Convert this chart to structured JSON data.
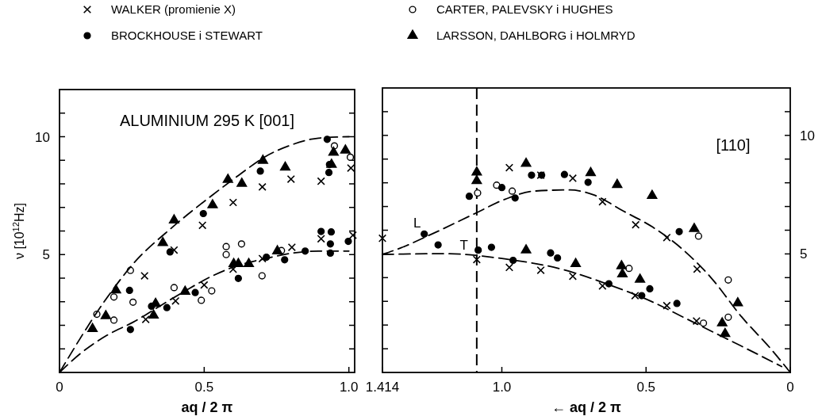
{
  "chart_data": [
    {
      "type": "scatter",
      "xlabel": "aq / 2 π",
      "ylabel": "ν [10$^{12}$Hz]",
      "annotations": [
        "ALUMINIUM 295 K [001]"
      ],
      "legend": "top",
      "xlim": [
        0,
        1.02
      ],
      "ylim": [
        0,
        12
      ],
      "xticks": [
        0,
        0.5,
        {
          "value": 1,
          "label": "1.0"
        }
      ],
      "yticks": [
        {
          "value": 1,
          "label": null
        },
        {
          "value": 2,
          "label": null
        },
        {
          "value": 3,
          "label": null
        },
        {
          "value": 4,
          "label": null
        },
        5,
        {
          "value": 6,
          "label": null
        },
        {
          "value": 7,
          "label": null
        },
        {
          "value": 8,
          "label": null
        },
        {
          "value": 9,
          "label": null
        },
        10,
        {
          "value": 11,
          "label": null
        }
      ],
      "series": [
        {
          "name": "WALKER (promienie X)",
          "marker": "cross",
          "color": "#000000",
          "x": [
            0.494,
            0.6,
            0.701,
            0.8,
            0.904,
            1.007,
            0.294,
            0.298,
            0.396,
            0.401,
            0.5,
            0.6,
            0.701,
            0.803,
            0.904,
            1.014
          ],
          "values": [
            6.24,
            7.21,
            7.87,
            8.2,
            8.11,
            8.67,
            4.1,
            2.25,
            5.19,
            3.03,
            3.71,
            4.38,
            4.83,
            5.31,
            5.67,
            5.82
          ]
        },
        {
          "name": "CARTER, PALEVSKY i HUGHES",
          "marker": "circle",
          "color": "#ffffff",
          "x": [
            0.129,
            0.188,
            0.188,
            0.245,
            0.254,
            0.396,
            0.49,
            0.526,
            0.576,
            0.576,
            0.629,
            0.7,
            0.767,
            0.95,
            1.005
          ],
          "values": [
            2.47,
            3.2,
            2.22,
            4.33,
            2.98,
            3.6,
            3.06,
            3.46,
            5.34,
            5.0,
            5.45,
            4.1,
            5.17,
            9.61,
            9.13
          ]
        },
        {
          "name": "BROCKHOUSE i STEWART",
          "marker": "circle",
          "color": "#000000",
          "x": [
            0.242,
            0.382,
            0.497,
            0.694,
            0.925,
            0.931,
            0.933,
            0.245,
            0.318,
            0.371,
            0.469,
            0.618,
            0.715,
            0.778,
            0.849,
            0.904,
            0.939,
            0.936,
            0.936,
            0.998
          ],
          "values": [
            3.48,
            5.11,
            6.74,
            8.54,
            9.89,
            8.48,
            8.82,
            1.82,
            2.81,
            2.75,
            3.39,
            3.99,
            4.89,
            4.78,
            5.15,
            5.98,
            5.96,
            5.45,
            5.06,
            5.56
          ]
        },
        {
          "name": "LARSSON, DAHLBORG i HOLMRYD",
          "marker": "triangle",
          "color": "#000000",
          "x": [
            0.114,
            0.16,
            0.195,
            0.357,
            0.396,
            0.529,
            0.582,
            0.63,
            0.703,
            0.78,
            0.947,
            0.988,
            0.94,
            0.332,
            0.325,
            0.434,
            0.602,
            0.618,
            0.654,
            0.753
          ],
          "values": [
            1.85,
            2.4,
            3.49,
            5.5,
            6.46,
            7.1,
            8.18,
            8.01,
            8.99,
            8.7,
            9.33,
            9.42,
            8.82,
            2.92,
            2.42,
            3.43,
            4.61,
            4.61,
            4.61,
            5.15
          ]
        },
        {
          "type": "line",
          "line_style": "dashed",
          "color": "#000000",
          "x": [
            0,
            0.163,
            0.254,
            0.392,
            0.529,
            0.62,
            0.712,
            0.803,
            0.895,
            1.0
          ],
          "values": [
            0,
            3.15,
            4.6,
            6.18,
            7.53,
            8.37,
            9.16,
            9.66,
            9.94,
            10.0
          ]
        },
        {
          "type": "line",
          "line_style": "dashed",
          "color": "#000000",
          "x": [
            0,
            0.071,
            0.163,
            0.254,
            0.346,
            0.437,
            0.529,
            0.62,
            0.712,
            0.803,
            0.895,
            1.0
          ],
          "values": [
            0,
            0.79,
            1.57,
            2.13,
            2.81,
            3.48,
            4.1,
            4.55,
            4.83,
            5.06,
            5.15,
            5.15
          ]
        }
      ]
    },
    {
      "type": "scatter",
      "xlabel": "← aq / 2 π",
      "legend": false,
      "xlim": [
        1.414,
        0
      ],
      "y2lim": [
        0,
        12
      ],
      "xticks": [
        1.414,
        {
          "value": 1,
          "label": "1.0"
        },
        0.5,
        0
      ],
      "y2ticks": [
        {
          "value": 1,
          "label": null
        },
        {
          "value": 2,
          "label": null
        },
        {
          "value": 3,
          "label": null
        },
        {
          "value": 4,
          "label": null
        },
        5,
        {
          "value": 6,
          "label": null
        },
        {
          "value": 7,
          "label": null
        },
        {
          "value": 8,
          "label": null
        },
        {
          "value": 9,
          "label": null
        },
        10,
        {
          "value": 11,
          "label": null
        }
      ],
      "annotations": [
        "[110]",
        "L",
        "T"
      ],
      "ref_lines": [
        {
          "axis": "x",
          "value": 1.087,
          "line_style": "dashed",
          "color": "#000000"
        }
      ],
      "series": [
        {
          "axis": "y2",
          "marker": "cross",
          "color": "#000000",
          "x": [
            1.414,
            1.087,
            0.974,
            0.974,
            0.865,
            0.865,
            0.754,
            0.754,
            0.651,
            0.651,
            0.536,
            0.538,
            0.428,
            0.428,
            0.323,
            0.325
          ],
          "values": [
            5.66,
            4.76,
            8.64,
            4.43,
            8.32,
            4.31,
            8.19,
            4.06,
            7.2,
            3.65,
            6.23,
            3.24,
            5.69,
            2.82,
            4.36,
            2.17
          ]
        },
        {
          "axis": "y2",
          "marker": "circle",
          "color": "#ffffff",
          "x": [
            1.084,
            1.018,
            0.964,
            0.559,
            0.318,
            0.301,
            0.215,
            0.215
          ],
          "values": [
            7.57,
            7.9,
            7.65,
            4.39,
            5.75,
            2.08,
            3.9,
            2.33
          ]
        },
        {
          "axis": "y2",
          "marker": "circle",
          "color": "#000000",
          "x": [
            1.269,
            1.221,
            1.113,
            1.082,
            1.036,
            1.0,
            0.954,
            0.961,
            0.897,
            0.862,
            0.831,
            0.807,
            0.783,
            0.701,
            0.629,
            0.515,
            0.487,
            0.385,
            0.393
          ],
          "values": [
            5.84,
            5.38,
            7.43,
            5.16,
            5.28,
            7.8,
            7.36,
            4.73,
            8.32,
            8.32,
            5.04,
            4.83,
            8.35,
            8.02,
            3.74,
            3.24,
            3.53,
            5.94,
            2.91
          ]
        },
        {
          "axis": "y2",
          "marker": "triangle",
          "color": "#000000",
          "x": [
            1.087,
            1.087,
            0.916,
            0.916,
            0.744,
            0.692,
            0.6,
            0.585,
            0.582,
            0.521,
            0.479,
            0.333,
            0.236,
            0.226,
            0.182
          ],
          "values": [
            8.44,
            8.08,
            8.81,
            5.16,
            4.58,
            8.42,
            7.92,
            4.49,
            4.15,
            3.92,
            7.46,
            6.06,
            2.08,
            1.63,
            2.93
          ]
        },
        {
          "type": "line",
          "axis": "y2",
          "line_style": "dashed",
          "color": "#000000",
          "x": [
            1.414,
            1.349,
            1.246,
            1.092,
            0.99,
            0.887,
            0.764,
            0.682,
            0.579,
            0.477,
            0.374,
            0.272,
            0.169,
            0.067,
            0
          ],
          "values": [
            4.98,
            5.26,
            5.82,
            6.71,
            7.3,
            7.65,
            7.7,
            7.49,
            6.81,
            6.13,
            5.2,
            3.96,
            2.35,
            0.99,
            0
          ]
        },
        {
          "type": "line",
          "axis": "y2",
          "line_style": "dashed",
          "color": "#000000",
          "x": [
            1.414,
            1.195,
            0.99,
            0.785,
            0.631,
            0.477,
            0.374,
            0.272,
            0.169,
            0.03
          ],
          "values": [
            4.98,
            5.01,
            4.79,
            4.33,
            3.71,
            2.97,
            2.35,
            1.73,
            1.11,
            0.25
          ]
        }
      ]
    }
  ]
}
